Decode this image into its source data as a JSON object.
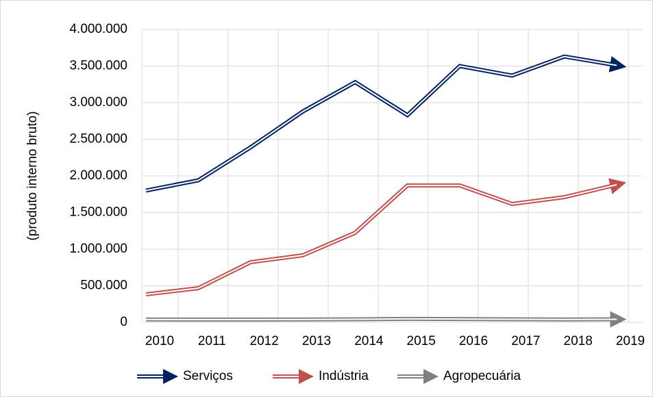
{
  "chart_data": {
    "type": "line",
    "y_label": "(produto interno bruto)",
    "categories": [
      "2010",
      "2011",
      "2012",
      "2013",
      "2014",
      "2015",
      "2016",
      "2017",
      "2018",
      "2019"
    ],
    "series": [
      {
        "name": "Serviços",
        "color": "#002060",
        "values": [
          1800000,
          1940000,
          2390000,
          2880000,
          3280000,
          2830000,
          3500000,
          3370000,
          3630000,
          3510000
        ]
      },
      {
        "name": "Indústria",
        "color": "#c0504d",
        "values": [
          383000,
          467000,
          822000,
          916000,
          1224000,
          1870000,
          1870000,
          1617000,
          1710000,
          1880000
        ]
      },
      {
        "name": "Agropecuária",
        "color": "#808080",
        "values": [
          40000,
          38000,
          38000,
          40000,
          42000,
          48000,
          46000,
          42000,
          40000,
          42000
        ]
      }
    ],
    "ylim": [
      0,
      4000000
    ],
    "yticks": [
      0,
      {
        "value": 500000,
        "label": "500.000"
      },
      {
        "value": 1000000,
        "label": "1.000.000"
      },
      {
        "value": 1500000,
        "label": "1.500.000"
      },
      {
        "value": 2000000,
        "label": "2.000.000"
      },
      {
        "value": 2500000,
        "label": "2.500.000"
      },
      {
        "value": 3000000,
        "label": "3.000.000"
      },
      {
        "value": 3500000,
        "label": "3.500.000"
      },
      {
        "value": 4000000,
        "label": "4.000.000"
      }
    ],
    "grid": true,
    "legend": "bottom"
  }
}
